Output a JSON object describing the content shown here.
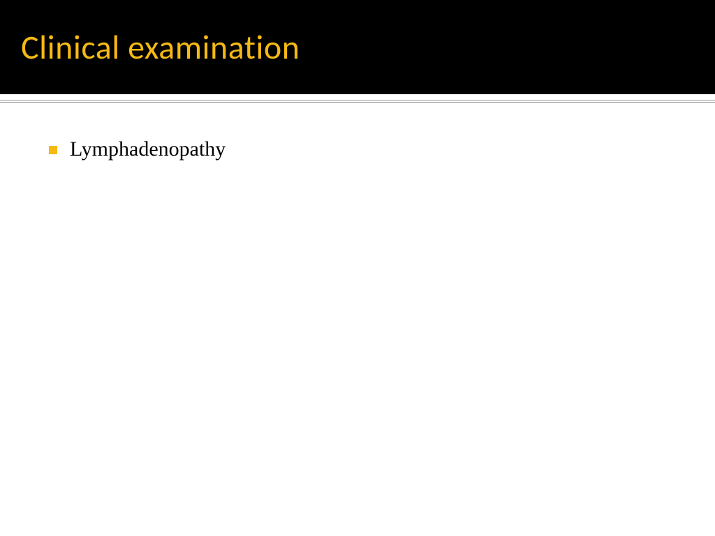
{
  "slide": {
    "title": "Clinical examination",
    "title_color": "#f5b914",
    "header_background": "#000000",
    "body_background": "#ffffff",
    "bullet_color": "#f5b914",
    "text_color": "#000000",
    "divider_color": "#9a9a9a",
    "title_fontsize": 48,
    "body_fontsize": 30,
    "bullets": [
      {
        "text": "Lymphadenopathy"
      }
    ]
  }
}
